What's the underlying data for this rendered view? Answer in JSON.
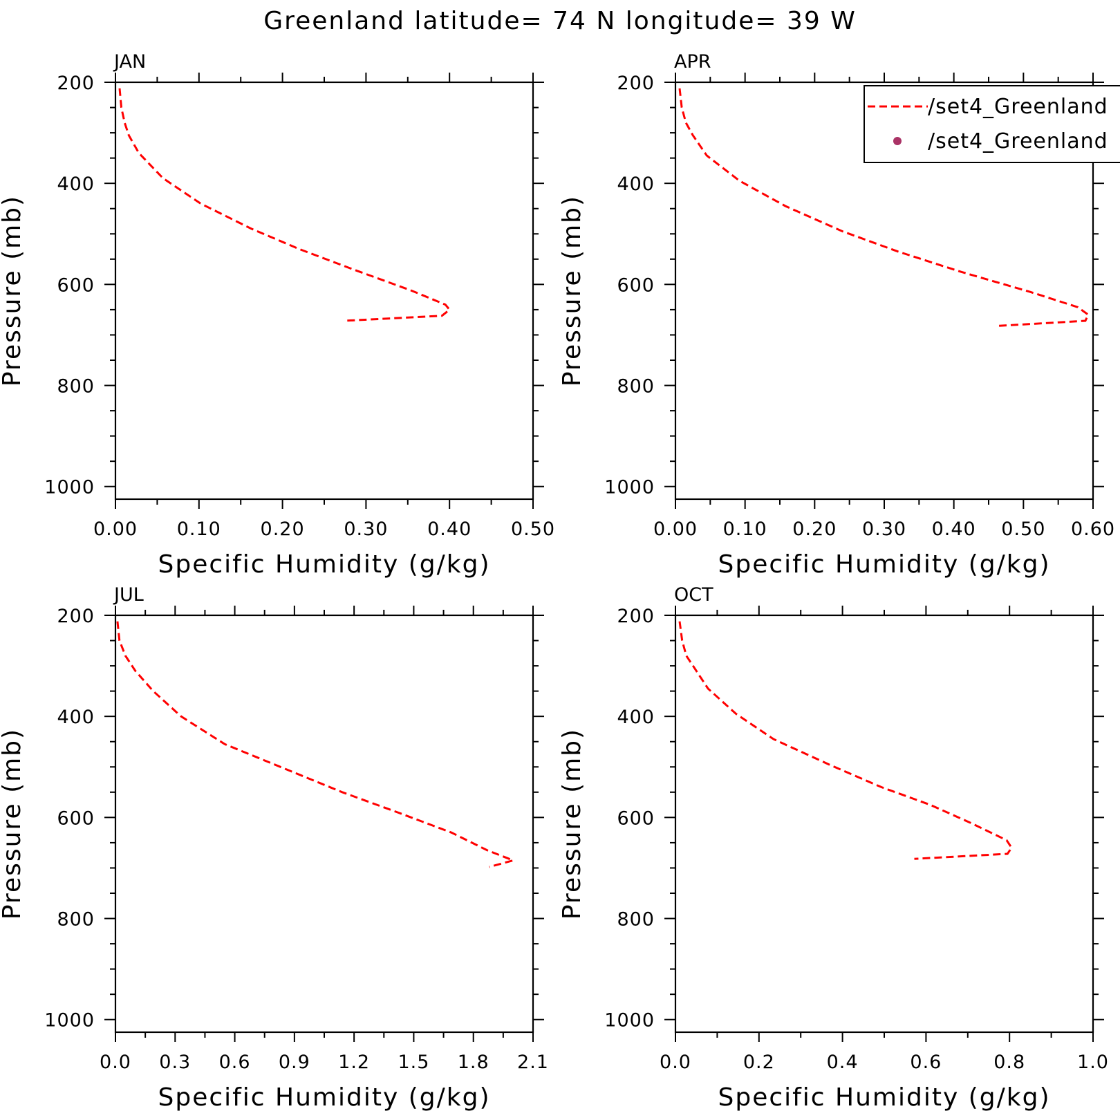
{
  "title": "Greenland  latitude= 74 N longitude= 39 W",
  "legend": {
    "entries": [
      {
        "label": "/set4_Greenland",
        "marker": "dashed-line",
        "color": "#ff0000"
      },
      {
        "label": "/set4_Greenland",
        "marker": "dot",
        "color": "#aa3366"
      }
    ]
  },
  "chart_data": [
    {
      "type": "line",
      "panel": "JAN",
      "xlabel": "Specific Humidity (g/kg)",
      "ylabel": "Pressure (mb)",
      "xlim": [
        0,
        0.5
      ],
      "ylim": [
        200,
        1025
      ],
      "y_inverted": true,
      "xticks": [
        "0.00",
        "0.10",
        "0.20",
        "0.30",
        "0.40",
        "0.50"
      ],
      "xtick_values": [
        0,
        0.1,
        0.2,
        0.3,
        0.4,
        0.5
      ],
      "yticks": [
        "200",
        "400",
        "600",
        "800",
        "1000"
      ],
      "ytick_values": [
        200,
        400,
        600,
        800,
        1000
      ],
      "series": [
        {
          "name": "/set4_Greenland",
          "color": "#ff0000",
          "x": [
            0.005,
            0.007,
            0.011,
            0.016,
            0.028,
            0.057,
            0.102,
            0.163,
            0.22,
            0.284,
            0.354,
            0.395,
            0.4,
            0.391,
            0.274
          ],
          "y": [
            212,
            250,
            280,
            305,
            340,
            390,
            440,
            490,
            530,
            570,
            612,
            640,
            650,
            662,
            672
          ]
        }
      ]
    },
    {
      "type": "line",
      "panel": "APR",
      "xlabel": "Specific Humidity (g/kg)",
      "ylabel": "Pressure (mb)",
      "xlim": [
        0,
        0.6
      ],
      "ylim": [
        200,
        1025
      ],
      "y_inverted": true,
      "xticks": [
        "0.00",
        "0.10",
        "0.20",
        "0.30",
        "0.40",
        "0.50",
        "0.60"
      ],
      "xtick_values": [
        0,
        0.1,
        0.2,
        0.3,
        0.4,
        0.5,
        0.6
      ],
      "yticks": [
        "200",
        "400",
        "600",
        "800",
        "1000"
      ],
      "ytick_values": [
        200,
        400,
        600,
        800,
        1000
      ],
      "series": [
        {
          "name": "/set4_Greenland",
          "color": "#ff0000",
          "x": [
            0.006,
            0.009,
            0.015,
            0.025,
            0.045,
            0.092,
            0.158,
            0.24,
            0.32,
            0.41,
            0.51,
            0.578,
            0.593,
            0.589,
            0.465
          ],
          "y": [
            212,
            250,
            280,
            305,
            345,
            395,
            445,
            495,
            535,
            575,
            615,
            645,
            660,
            672,
            682
          ]
        }
      ]
    },
    {
      "type": "line",
      "panel": "JUL",
      "xlabel": "Specific Humidity (g/kg)",
      "ylabel": "Pressure (mb)",
      "xlim": [
        0,
        2.1
      ],
      "ylim": [
        200,
        1025
      ],
      "y_inverted": true,
      "xticks": [
        "0.0",
        "0.3",
        "0.6",
        "0.9",
        "1.2",
        "1.5",
        "1.8",
        "2.1"
      ],
      "xtick_values": [
        0,
        0.3,
        0.6,
        0.9,
        1.2,
        1.5,
        1.8,
        2.1
      ],
      "yticks": [
        "200",
        "400",
        "600",
        "800",
        "1000"
      ],
      "ytick_values": [
        200,
        400,
        600,
        800,
        1000
      ],
      "series": [
        {
          "name": "/set4_Greenland",
          "color": "#ff0000",
          "x": [
            0.01,
            0.02,
            0.05,
            0.1,
            0.19,
            0.33,
            0.55,
            0.86,
            1.14,
            1.42,
            1.69,
            1.87,
            2.0,
            1.88
          ],
          "y": [
            212,
            250,
            280,
            310,
            350,
            400,
            455,
            505,
            550,
            590,
            630,
            665,
            685,
            698
          ]
        }
      ]
    },
    {
      "type": "line",
      "panel": "OCT",
      "xlabel": "Specific Humidity (g/kg)",
      "ylabel": "Pressure (mb)",
      "xlim": [
        0,
        1.0
      ],
      "ylim": [
        200,
        1025
      ],
      "y_inverted": true,
      "xticks": [
        "0.0",
        "0.2",
        "0.4",
        "0.6",
        "0.8",
        "1.0"
      ],
      "xtick_values": [
        0,
        0.2,
        0.4,
        0.6,
        0.8,
        1.0
      ],
      "yticks": [
        "200",
        "400",
        "600",
        "800",
        "1000"
      ],
      "ytick_values": [
        200,
        400,
        600,
        800,
        1000
      ],
      "series": [
        {
          "name": "/set4_Greenland",
          "color": "#ff0000",
          "x": [
            0.01,
            0.016,
            0.026,
            0.046,
            0.078,
            0.145,
            0.235,
            0.367,
            0.493,
            0.61,
            0.705,
            0.793,
            0.805,
            0.795,
            0.572
          ],
          "y": [
            212,
            250,
            280,
            305,
            345,
            395,
            445,
            495,
            540,
            575,
            610,
            645,
            660,
            672,
            682
          ]
        }
      ]
    }
  ]
}
